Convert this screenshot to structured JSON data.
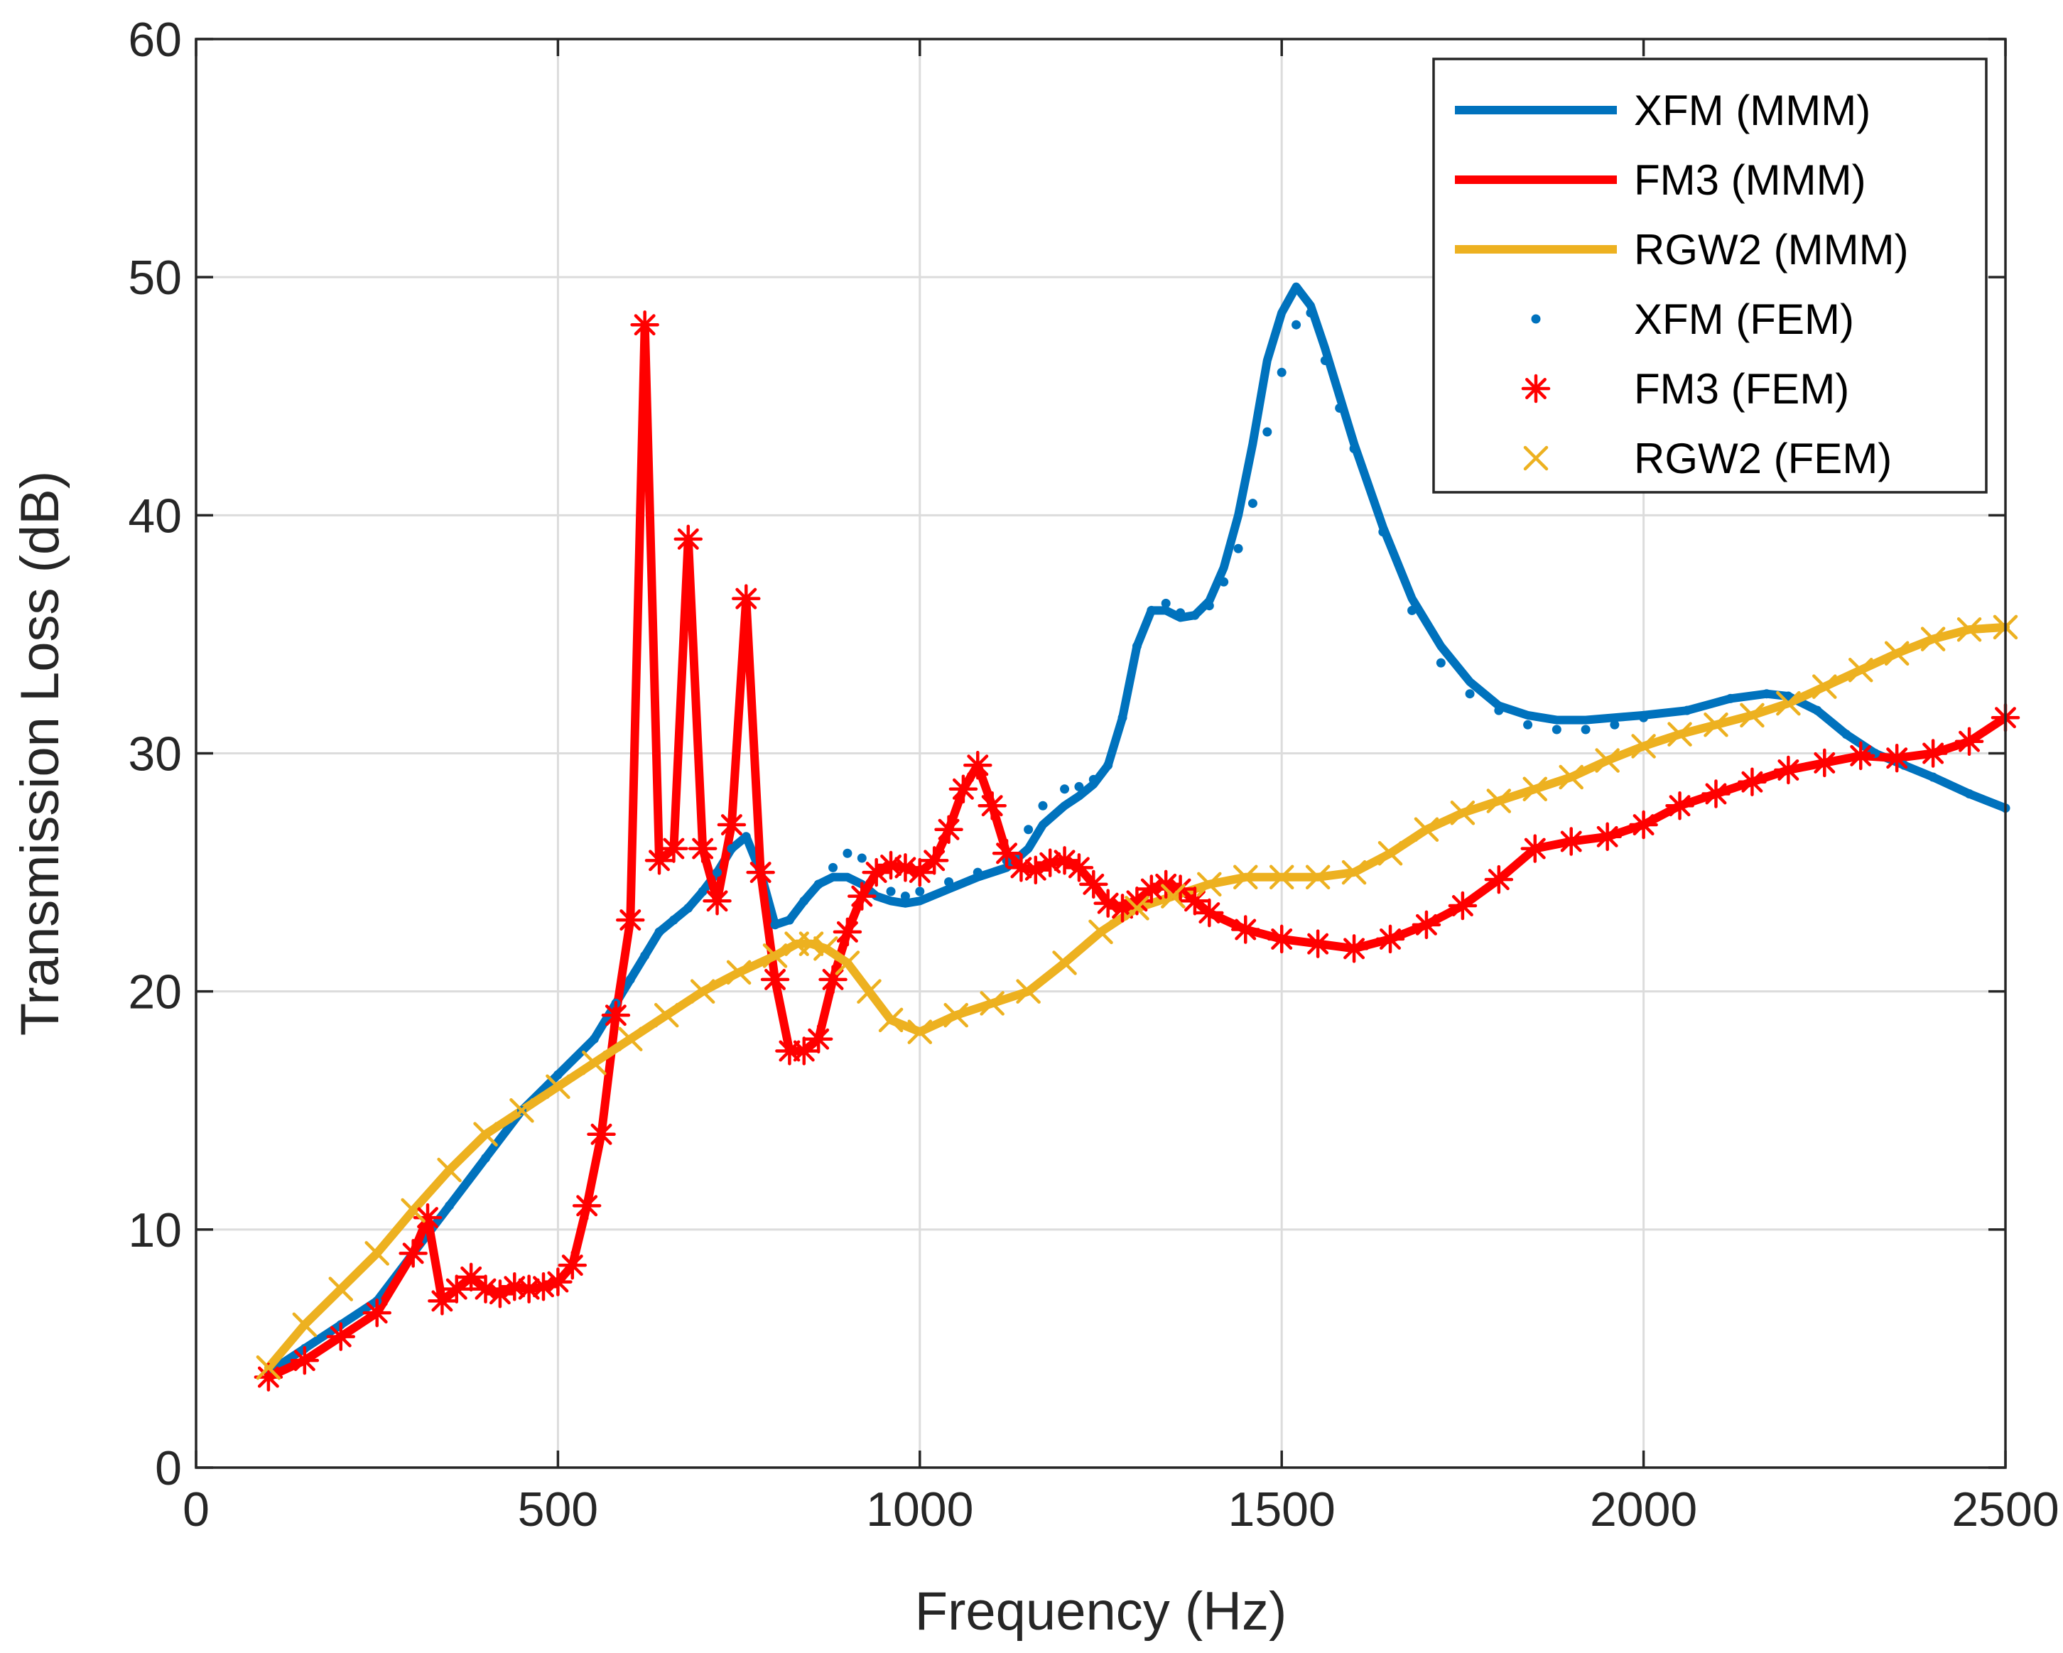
{
  "chart_data": {
    "type": "line",
    "title": "",
    "xlabel": "Frequency (Hz)",
    "ylabel": "Transmission Loss (dB)",
    "xlim": [
      0,
      2500
    ],
    "ylim": [
      0,
      60
    ],
    "xticks": [
      0,
      500,
      1000,
      1500,
      2000,
      2500
    ],
    "yticks": [
      0,
      10,
      20,
      30,
      40,
      50,
      60
    ],
    "xtick_labels": [
      "0",
      "500",
      "1000",
      "1500",
      "2000",
      "2500"
    ],
    "ytick_labels": [
      "0",
      "10",
      "20",
      "30",
      "40",
      "50",
      "60"
    ],
    "grid": true,
    "legend_position": "top-right",
    "series": [
      {
        "name": "XFM (MMM)",
        "style": "line",
        "color": "#0072BD",
        "x": [
          100,
          150,
          200,
          250,
          300,
          350,
          400,
          450,
          500,
          550,
          580,
          600,
          620,
          640,
          660,
          680,
          700,
          720,
          740,
          760,
          780,
          800,
          820,
          840,
          860,
          880,
          900,
          920,
          940,
          960,
          980,
          1000,
          1040,
          1080,
          1120,
          1150,
          1170,
          1200,
          1220,
          1240,
          1260,
          1280,
          1300,
          1320,
          1340,
          1360,
          1380,
          1400,
          1420,
          1440,
          1460,
          1480,
          1500,
          1520,
          1540,
          1560,
          1580,
          1600,
          1640,
          1680,
          1720,
          1760,
          1800,
          1840,
          1880,
          1920,
          1960,
          2000,
          2060,
          2120,
          2170,
          2200,
          2240,
          2280,
          2320,
          2360,
          2400,
          2450,
          2500
        ],
        "y": [
          4.0,
          5.0,
          6.0,
          7.0,
          9.0,
          11.0,
          13.0,
          15.0,
          16.5,
          18.0,
          19.5,
          20.5,
          21.5,
          22.5,
          23.0,
          23.5,
          24.2,
          25.0,
          26.0,
          26.5,
          25.0,
          22.8,
          23.0,
          23.8,
          24.5,
          24.8,
          24.8,
          24.5,
          24.0,
          23.8,
          23.7,
          23.8,
          24.3,
          24.8,
          25.2,
          26.0,
          27.0,
          27.8,
          28.2,
          28.7,
          29.5,
          31.5,
          34.5,
          36.0,
          36.0,
          35.7,
          35.8,
          36.4,
          37.8,
          40.0,
          43.0,
          46.5,
          48.5,
          49.6,
          48.8,
          47.0,
          45.0,
          43.0,
          39.5,
          36.5,
          34.5,
          33.0,
          32.0,
          31.6,
          31.4,
          31.4,
          31.5,
          31.6,
          31.8,
          32.3,
          32.5,
          32.4,
          31.8,
          30.8,
          30.0,
          29.5,
          29.0,
          28.3,
          27.7
        ]
      },
      {
        "name": "FM3 (MMM)",
        "style": "line",
        "color": "#FF0000",
        "x": [
          100,
          150,
          200,
          250,
          300,
          320,
          340,
          360,
          380,
          400,
          420,
          440,
          460,
          480,
          500,
          520,
          540,
          560,
          580,
          600,
          620,
          640,
          660,
          680,
          700,
          720,
          740,
          760,
          780,
          800,
          820,
          840,
          860,
          880,
          900,
          920,
          940,
          960,
          980,
          1000,
          1020,
          1040,
          1060,
          1080,
          1100,
          1120,
          1140,
          1160,
          1180,
          1200,
          1220,
          1240,
          1260,
          1280,
          1300,
          1320,
          1340,
          1360,
          1380,
          1400,
          1450,
          1500,
          1550,
          1600,
          1650,
          1700,
          1750,
          1800,
          1850,
          1900,
          1950,
          2000,
          2050,
          2100,
          2150,
          2200,
          2250,
          2300,
          2350,
          2400,
          2450,
          2500
        ],
        "y": [
          3.8,
          4.5,
          5.5,
          6.5,
          9.0,
          10.5,
          7.0,
          7.5,
          8.0,
          7.5,
          7.3,
          7.6,
          7.5,
          7.6,
          7.8,
          8.5,
          11.0,
          14.0,
          19.0,
          23.0,
          48.0,
          25.5,
          26.0,
          39.0,
          26.0,
          23.8,
          27.0,
          36.5,
          25.0,
          20.5,
          17.5,
          17.5,
          18.0,
          20.5,
          22.5,
          24.0,
          25.0,
          25.3,
          25.2,
          25.0,
          25.5,
          26.8,
          28.5,
          29.5,
          27.8,
          25.8,
          25.2,
          25.1,
          25.4,
          25.5,
          25.2,
          24.5,
          23.7,
          23.5,
          23.8,
          24.3,
          24.5,
          24.3,
          23.8,
          23.3,
          22.6,
          22.2,
          22.0,
          21.8,
          22.2,
          22.8,
          23.6,
          24.7,
          26.0,
          26.3,
          26.5,
          27.0,
          27.8,
          28.3,
          28.8,
          29.3,
          29.6,
          29.9,
          29.8,
          30.0,
          30.5,
          31.5
        ]
      },
      {
        "name": "RGW2 (MMM)",
        "style": "line",
        "color": "#EDB120",
        "x": [
          100,
          150,
          200,
          250,
          300,
          350,
          400,
          450,
          500,
          550,
          600,
          650,
          700,
          750,
          800,
          830,
          850,
          870,
          900,
          930,
          960,
          1000,
          1050,
          1100,
          1150,
          1200,
          1250,
          1300,
          1350,
          1400,
          1450,
          1500,
          1550,
          1600,
          1650,
          1700,
          1750,
          1800,
          1850,
          1900,
          1950,
          2000,
          2050,
          2100,
          2150,
          2200,
          2250,
          2300,
          2350,
          2400,
          2450,
          2500
        ],
        "y": [
          4.2,
          6.0,
          7.5,
          9.0,
          10.8,
          12.5,
          14.0,
          15.0,
          16.0,
          17.0,
          18.0,
          19.0,
          20.0,
          20.8,
          21.5,
          22.0,
          22.0,
          21.8,
          21.2,
          20.0,
          18.8,
          18.3,
          19.0,
          19.5,
          20.0,
          21.2,
          22.5,
          23.5,
          24.0,
          24.5,
          24.8,
          24.8,
          24.8,
          25.0,
          25.8,
          26.8,
          27.5,
          28.0,
          28.5,
          29.0,
          29.7,
          30.3,
          30.8,
          31.2,
          31.6,
          32.1,
          32.8,
          33.5,
          34.2,
          34.8,
          35.2,
          35.3
        ]
      },
      {
        "name": "XFM (FEM)",
        "style": "dots",
        "color": "#0072BD",
        "x": [
          100,
          150,
          200,
          250,
          300,
          350,
          400,
          450,
          500,
          550,
          580,
          600,
          620,
          640,
          660,
          680,
          700,
          720,
          740,
          760,
          780,
          800,
          820,
          840,
          860,
          880,
          900,
          920,
          940,
          960,
          980,
          1000,
          1040,
          1080,
          1120,
          1150,
          1170,
          1200,
          1220,
          1240,
          1260,
          1280,
          1300,
          1320,
          1340,
          1360,
          1380,
          1400,
          1420,
          1440,
          1460,
          1480,
          1500,
          1520,
          1540,
          1560,
          1580,
          1600,
          1640,
          1680,
          1720,
          1760,
          1800,
          1840,
          1880,
          1920,
          1960,
          2000,
          2060,
          2120,
          2170,
          2200,
          2240,
          2280,
          2320,
          2360,
          2400,
          2450,
          2500
        ],
        "y": [
          4.0,
          5.0,
          6.0,
          7.0,
          9.0,
          11.0,
          13.0,
          15.0,
          16.5,
          18.0,
          19.5,
          20.5,
          21.5,
          22.5,
          23.0,
          23.5,
          24.2,
          25.0,
          26.0,
          26.5,
          25.0,
          22.8,
          23.0,
          23.8,
          24.5,
          25.2,
          25.8,
          25.6,
          25.0,
          24.2,
          24.0,
          24.2,
          24.6,
          25.0,
          25.5,
          26.8,
          27.8,
          28.5,
          28.6,
          28.9,
          29.5,
          31.5,
          34.5,
          36.0,
          36.3,
          35.9,
          35.8,
          36.2,
          37.2,
          38.6,
          40.5,
          43.5,
          46.0,
          48.0,
          48.5,
          46.5,
          44.5,
          42.8,
          39.3,
          36.0,
          33.8,
          32.5,
          31.8,
          31.2,
          31.0,
          31.0,
          31.2,
          31.5,
          31.8,
          32.3,
          32.5,
          32.4,
          31.8,
          30.8,
          30.0,
          29.5,
          29.0,
          28.3,
          27.7
        ]
      },
      {
        "name": "FM3 (FEM)",
        "style": "asterisk",
        "color": "#FF0000",
        "x": [
          100,
          150,
          200,
          250,
          300,
          320,
          340,
          360,
          380,
          400,
          420,
          440,
          460,
          480,
          500,
          520,
          540,
          560,
          580,
          600,
          620,
          640,
          660,
          680,
          700,
          720,
          740,
          760,
          780,
          800,
          820,
          840,
          860,
          880,
          900,
          920,
          940,
          960,
          980,
          1000,
          1020,
          1040,
          1060,
          1080,
          1100,
          1120,
          1140,
          1160,
          1180,
          1200,
          1220,
          1240,
          1260,
          1280,
          1300,
          1320,
          1340,
          1360,
          1380,
          1400,
          1450,
          1500,
          1550,
          1600,
          1650,
          1700,
          1750,
          1800,
          1850,
          1900,
          1950,
          2000,
          2050,
          2100,
          2150,
          2200,
          2250,
          2300,
          2350,
          2400,
          2450,
          2500
        ],
        "y": [
          3.8,
          4.5,
          5.5,
          6.5,
          9.0,
          10.5,
          7.0,
          7.5,
          8.0,
          7.5,
          7.3,
          7.6,
          7.5,
          7.6,
          7.8,
          8.5,
          11.0,
          14.0,
          19.0,
          23.0,
          48.0,
          25.5,
          26.0,
          39.0,
          26.0,
          23.8,
          27.0,
          36.5,
          25.0,
          20.5,
          17.5,
          17.5,
          18.0,
          20.5,
          22.5,
          24.0,
          25.0,
          25.3,
          25.2,
          25.0,
          25.5,
          26.8,
          28.5,
          29.5,
          27.8,
          25.8,
          25.2,
          25.1,
          25.4,
          25.5,
          25.2,
          24.5,
          23.7,
          23.5,
          23.8,
          24.3,
          24.5,
          24.3,
          23.8,
          23.3,
          22.6,
          22.2,
          22.0,
          21.8,
          22.2,
          22.8,
          23.6,
          24.7,
          26.0,
          26.3,
          26.5,
          27.0,
          27.8,
          28.3,
          28.8,
          29.3,
          29.6,
          29.9,
          29.8,
          30.0,
          30.5,
          31.5
        ]
      },
      {
        "name": "RGW2 (FEM)",
        "style": "x",
        "color": "#EDB120",
        "x": [
          100,
          150,
          200,
          250,
          300,
          350,
          400,
          450,
          500,
          550,
          600,
          650,
          700,
          750,
          800,
          830,
          850,
          870,
          900,
          930,
          960,
          1000,
          1050,
          1100,
          1150,
          1200,
          1250,
          1300,
          1350,
          1400,
          1450,
          1500,
          1550,
          1600,
          1650,
          1700,
          1750,
          1800,
          1850,
          1900,
          1950,
          2000,
          2050,
          2100,
          2150,
          2200,
          2250,
          2300,
          2350,
          2400,
          2450,
          2500
        ],
        "y": [
          4.2,
          6.0,
          7.5,
          9.0,
          10.8,
          12.5,
          14.0,
          15.0,
          16.0,
          17.0,
          18.0,
          19.0,
          20.0,
          20.8,
          21.5,
          22.0,
          22.0,
          21.8,
          21.2,
          20.0,
          18.8,
          18.3,
          19.0,
          19.5,
          20.0,
          21.2,
          22.5,
          23.5,
          24.0,
          24.5,
          24.8,
          24.8,
          24.8,
          25.0,
          25.8,
          26.8,
          27.5,
          28.0,
          28.5,
          29.0,
          29.7,
          30.3,
          30.8,
          31.2,
          31.6,
          32.1,
          32.8,
          33.5,
          34.2,
          34.8,
          35.2,
          35.3
        ]
      }
    ]
  }
}
